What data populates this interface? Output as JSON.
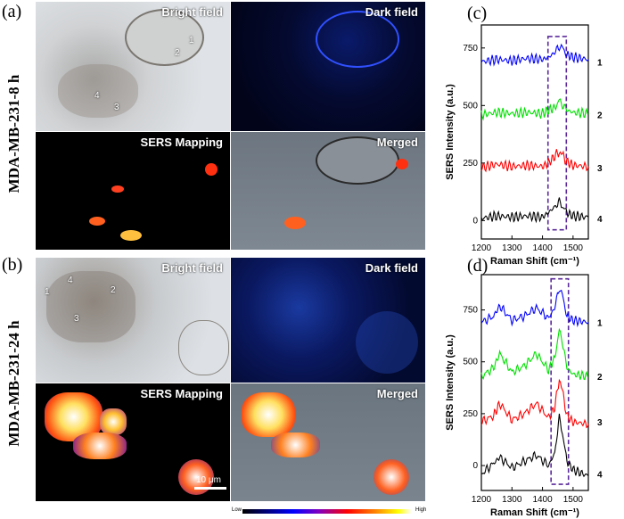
{
  "panels": {
    "a": {
      "letter": "(a)",
      "row_label": "MDA-MB-231-8 h",
      "tiles": {
        "bright": "Bright field",
        "dark": "Dark field",
        "sers": "SERS Mapping",
        "merged": "Merged"
      },
      "cell_numbers": [
        "1",
        "2",
        "3",
        "4"
      ]
    },
    "b": {
      "letter": "(b)",
      "row_label": "MDA-MB-231-24 h",
      "tiles": {
        "bright": "Bright field",
        "dark": "Dark field",
        "sers": "SERS Mapping",
        "merged": "Merged"
      },
      "cell_numbers": [
        "1",
        "2",
        "3",
        "4"
      ],
      "scale_bar": "10 μm"
    },
    "c": {
      "letter": "(c)"
    },
    "d": {
      "letter": "(d)"
    }
  },
  "colorbar": {
    "low": "Low",
    "high": "High"
  },
  "chart_data": [
    {
      "type": "line",
      "panel": "c",
      "xlabel": "Raman Shift (cm⁻¹)",
      "ylabel": "SERS Intensity (a.u.)",
      "xlim": [
        1200,
        1550
      ],
      "ylim": [
        -80,
        850
      ],
      "xticks": [
        1200,
        1300,
        1400,
        1500
      ],
      "yticks": [
        0,
        250,
        500,
        750
      ],
      "highlight_box": {
        "x": [
          1418,
          1478
        ],
        "y": [
          -40,
          800
        ],
        "color": "#5b2b9a"
      },
      "series": [
        {
          "name": "1",
          "color": "#0000ff",
          "x": [
            1200,
            1250,
            1300,
            1350,
            1400,
            1420,
            1440,
            1455,
            1465,
            1480,
            1500,
            1550
          ],
          "y": [
            690,
            700,
            695,
            705,
            700,
            710,
            730,
            760,
            750,
            720,
            710,
            700
          ]
        },
        {
          "name": "2",
          "color": "#00e000",
          "x": [
            1200,
            1250,
            1300,
            1350,
            1400,
            1420,
            1440,
            1455,
            1465,
            1480,
            1500,
            1550
          ],
          "y": [
            460,
            470,
            465,
            470,
            465,
            480,
            490,
            520,
            505,
            480,
            470,
            465
          ]
        },
        {
          "name": "3",
          "color": "#ff0000",
          "x": [
            1200,
            1250,
            1300,
            1350,
            1400,
            1420,
            1440,
            1455,
            1465,
            1480,
            1500,
            1550
          ],
          "y": [
            230,
            245,
            235,
            240,
            235,
            250,
            280,
            300,
            285,
            255,
            240,
            235
          ]
        },
        {
          "name": "4",
          "color": "#000000",
          "x": [
            1200,
            1250,
            1300,
            1350,
            1400,
            1420,
            1440,
            1455,
            1465,
            1480,
            1500,
            1550
          ],
          "y": [
            10,
            20,
            15,
            20,
            15,
            35,
            60,
            80,
            65,
            35,
            20,
            15
          ]
        }
      ]
    },
    {
      "type": "line",
      "panel": "d",
      "xlabel": "Raman Shift (cm⁻¹)",
      "ylabel": "SERS Intensity (a.u.)",
      "xlim": [
        1200,
        1550
      ],
      "ylim": [
        -120,
        920
      ],
      "xticks": [
        1200,
        1300,
        1400,
        1500
      ],
      "yticks": [
        0,
        250,
        500,
        750
      ],
      "highlight_box": {
        "x": [
          1428,
          1485
        ],
        "y": [
          -90,
          900
        ],
        "color": "#5b2b9a"
      },
      "series": [
        {
          "name": "1",
          "color": "#0000ff",
          "x": [
            1200,
            1240,
            1260,
            1300,
            1340,
            1380,
            1420,
            1440,
            1455,
            1465,
            1480,
            1500,
            1550
          ],
          "y": [
            690,
            720,
            770,
            700,
            720,
            760,
            710,
            760,
            860,
            820,
            720,
            700,
            690
          ]
        },
        {
          "name": "2",
          "color": "#00e000",
          "x": [
            1200,
            1240,
            1260,
            1300,
            1340,
            1380,
            1420,
            1440,
            1455,
            1465,
            1480,
            1500,
            1550
          ],
          "y": [
            430,
            470,
            540,
            450,
            480,
            540,
            460,
            520,
            650,
            600,
            470,
            440,
            430
          ]
        },
        {
          "name": "3",
          "color": "#ff0000",
          "x": [
            1200,
            1240,
            1260,
            1300,
            1340,
            1380,
            1420,
            1440,
            1455,
            1465,
            1480,
            1500,
            1550
          ],
          "y": [
            210,
            240,
            300,
            220,
            250,
            300,
            230,
            280,
            420,
            360,
            240,
            210,
            200
          ]
        },
        {
          "name": "4",
          "color": "#000000",
          "x": [
            1200,
            1240,
            1260,
            1300,
            1340,
            1380,
            1420,
            1440,
            1455,
            1465,
            1480,
            1500,
            1550
          ],
          "y": [
            -40,
            10,
            40,
            -10,
            20,
            50,
            0,
            60,
            230,
            160,
            20,
            -20,
            -50
          ]
        }
      ]
    }
  ]
}
